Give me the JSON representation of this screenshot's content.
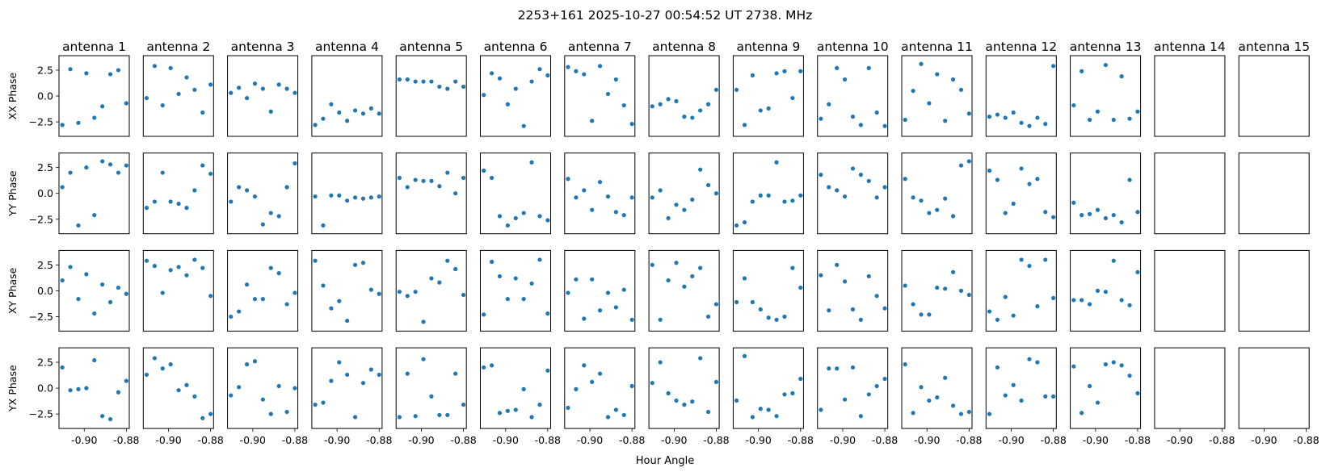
{
  "chart_data": {
    "type": "scatter",
    "title": "2253+161  2025-10-27 00:54:52 UT  2738. MHz",
    "xlabel": "Hour Angle",
    "xlim": [
      -0.912,
      -0.8786
    ],
    "ylim": [
      -3.9,
      3.9
    ],
    "xticks": [
      -0.9,
      -0.88
    ],
    "xtick_labels": [
      "-0.90",
      "-0.88"
    ],
    "yticks": [
      2.5,
      0.0,
      -2.5
    ],
    "ytick_labels": [
      "2.5",
      "0.0",
      "−2.5"
    ],
    "point_color": "#1f77b4",
    "antennas": [
      "antenna 1",
      "antenna 2",
      "antenna 3",
      "antenna 4",
      "antenna 5",
      "antenna 6",
      "antenna 7",
      "antenna 8",
      "antenna 9",
      "antenna 10",
      "antenna 11",
      "antenna 12",
      "antenna 13",
      "antenna 14",
      "antenna 15"
    ],
    "x": [
      -0.9104,
      -0.9066,
      -0.9028,
      -0.899,
      -0.8952,
      -0.8914,
      -0.8876,
      -0.8838,
      -0.88
    ],
    "series": [
      {
        "name": "XX Phase",
        "antennas": [
          [
            -2.8,
            2.6,
            -2.6,
            2.2,
            -2.1,
            -1.0,
            2.1,
            2.5,
            -0.7
          ],
          [
            -0.2,
            2.9,
            -0.9,
            2.7,
            0.2,
            1.8,
            0.6,
            -1.6,
            1.1
          ],
          [
            0.3,
            0.8,
            -0.2,
            1.2,
            0.7,
            -1.5,
            1.1,
            0.7,
            0.3
          ],
          [
            -2.8,
            -2.2,
            -0.8,
            -1.6,
            -2.4,
            -1.4,
            -1.7,
            -1.2,
            -1.7
          ],
          [
            1.6,
            1.6,
            1.4,
            1.4,
            1.4,
            0.9,
            0.7,
            1.4,
            0.9
          ],
          [
            0.1,
            2.2,
            1.7,
            -0.8,
            0.7,
            -2.9,
            1.4,
            2.6,
            2.0
          ],
          [
            2.8,
            2.4,
            2.1,
            -2.4,
            2.9,
            0.2,
            1.6,
            -0.9,
            -2.7
          ],
          [
            -1.0,
            -0.8,
            -0.3,
            -0.5,
            -2.0,
            -2.1,
            -1.4,
            -0.8,
            0.6
          ],
          [
            0.6,
            -2.8,
            2.0,
            -1.4,
            -1.2,
            2.2,
            2.4,
            -0.2,
            2.4
          ],
          [
            -2.2,
            -0.8,
            2.7,
            1.6,
            -2.0,
            -2.8,
            2.7,
            -1.6,
            -2.9
          ],
          [
            -2.3,
            0.5,
            3.1,
            -0.7,
            2.1,
            -2.4,
            1.6,
            0.6,
            -1.7
          ],
          [
            -2.0,
            -1.8,
            -2.1,
            -1.6,
            -2.6,
            -2.9,
            -2.1,
            -2.7,
            2.9
          ],
          [
            -0.9,
            2.4,
            -2.3,
            -1.5,
            3.0,
            -2.3,
            1.9,
            -2.2,
            -1.5
          ],
          [],
          []
        ]
      },
      {
        "name": "YY Phase",
        "antennas": [
          [
            0.6,
            2.0,
            -3.1,
            2.5,
            -2.1,
            3.1,
            2.8,
            2.0,
            2.7
          ],
          [
            -1.4,
            -0.8,
            2.0,
            -0.8,
            -1.0,
            -1.4,
            0.3,
            2.7,
            1.9
          ],
          [
            -0.8,
            0.6,
            0.3,
            -0.3,
            -3.0,
            -1.9,
            -2.2,
            0.6,
            2.9
          ],
          [
            -0.3,
            -3.1,
            -0.2,
            -0.2,
            -0.7,
            -0.4,
            -0.5,
            -0.4,
            -0.3
          ],
          [
            1.5,
            0.6,
            1.3,
            1.2,
            1.2,
            0.7,
            2.0,
            0.0,
            1.5
          ],
          [
            2.2,
            1.5,
            -2.2,
            -3.1,
            -2.4,
            -1.9,
            3.0,
            -2.2,
            -2.6
          ],
          [
            1.4,
            -0.4,
            0.3,
            -1.6,
            1.1,
            -0.3,
            -1.8,
            -2.1,
            -0.4
          ],
          [
            -0.4,
            0.3,
            -2.4,
            -1.1,
            -1.6,
            -0.6,
            2.3,
            0.8,
            0.0
          ],
          [
            -3.1,
            -2.8,
            -0.8,
            -0.2,
            -0.2,
            3.0,
            -0.8,
            -0.7,
            -0.2
          ],
          [
            1.8,
            0.6,
            0.3,
            -0.3,
            2.4,
            1.8,
            1.2,
            -0.4,
            0.6
          ],
          [
            1.4,
            -0.4,
            -0.7,
            -1.9,
            -1.6,
            -0.5,
            -2.2,
            2.7,
            3.1
          ],
          [
            2.2,
            1.3,
            -1.9,
            -1.0,
            2.4,
            0.9,
            1.4,
            -1.8,
            -2.3
          ],
          [
            -0.9,
            -2.1,
            -2.0,
            -1.6,
            -2.4,
            -2.1,
            -2.8,
            1.3,
            -1.8
          ],
          [],
          []
        ]
      },
      {
        "name": "XY Phase",
        "antennas": [
          [
            1.0,
            2.3,
            -0.8,
            1.6,
            -2.2,
            0.6,
            -1.1,
            0.3,
            -0.3
          ],
          [
            2.9,
            2.4,
            -0.2,
            2.0,
            2.3,
            1.5,
            3.0,
            2.2,
            -0.5
          ],
          [
            -2.5,
            -2.0,
            0.6,
            -0.8,
            -0.8,
            2.2,
            1.7,
            -1.3,
            -0.2
          ],
          [
            2.9,
            0.5,
            -1.7,
            -1.0,
            -2.9,
            2.5,
            2.7,
            0.1,
            -0.3
          ],
          [
            -0.1,
            -0.5,
            -0.1,
            -3.0,
            1.2,
            0.8,
            2.9,
            2.1,
            -0.4
          ],
          [
            -2.3,
            2.8,
            1.4,
            -0.8,
            1.2,
            -0.8,
            0.7,
            3.0,
            -2.2
          ],
          [
            -0.2,
            1.1,
            -2.7,
            1.1,
            -1.9,
            -0.2,
            -1.6,
            0.1,
            -2.8
          ],
          [
            2.5,
            -2.8,
            1.0,
            2.7,
            0.4,
            1.4,
            2.2,
            -2.5,
            -1.3
          ],
          [
            -1.1,
            1.2,
            -1.1,
            -1.8,
            -2.6,
            -2.8,
            -2.5,
            2.2,
            0.3
          ],
          [
            1.5,
            -1.9,
            2.5,
            0.9,
            -1.8,
            -2.8,
            1.4,
            -0.5,
            -1.7
          ],
          [
            0.5,
            -1.3,
            -2.3,
            -2.3,
            0.3,
            0.2,
            1.8,
            0.0,
            -0.4
          ],
          [
            -2.0,
            -2.8,
            -0.6,
            -2.4,
            3.0,
            2.4,
            -1.5,
            3.0,
            -0.7
          ],
          [
            -0.9,
            -0.9,
            -1.3,
            0.0,
            -0.1,
            2.9,
            -0.9,
            -1.4,
            1.8
          ],
          [],
          []
        ]
      },
      {
        "name": "YX Phase",
        "antennas": [
          [
            2.0,
            -0.2,
            -0.1,
            0.0,
            2.7,
            -2.7,
            -3.0,
            -0.4,
            0.7
          ],
          [
            1.3,
            2.9,
            1.9,
            2.3,
            -0.2,
            0.3,
            -0.8,
            -2.9,
            -2.5
          ],
          [
            -0.7,
            0.1,
            2.3,
            2.6,
            -1.1,
            -2.5,
            0.2,
            -2.3,
            0.0
          ],
          [
            -1.6,
            -1.4,
            0.7,
            2.5,
            1.3,
            -2.8,
            0.5,
            1.8,
            1.3
          ],
          [
            -2.8,
            1.4,
            -2.7,
            2.8,
            -0.8,
            -2.6,
            -2.6,
            1.4,
            -1.6
          ],
          [
            2.0,
            2.2,
            -2.4,
            -2.2,
            -2.1,
            -0.1,
            -2.8,
            -1.6,
            1.7
          ],
          [
            -1.9,
            -0.1,
            2.2,
            0.6,
            1.4,
            -2.8,
            -2.1,
            -2.6,
            0.2
          ],
          [
            0.5,
            2.5,
            -0.5,
            -1.2,
            -1.6,
            -1.3,
            2.9,
            -2.3,
            0.6
          ],
          [
            -1.2,
            3.1,
            -2.8,
            -2.0,
            -2.1,
            -2.7,
            -0.6,
            -0.5,
            0.9
          ],
          [
            -2.1,
            1.9,
            1.9,
            -1.1,
            2.0,
            -2.7,
            -0.6,
            0.2,
            0.9
          ],
          [
            2.3,
            -2.4,
            0.1,
            -1.2,
            -0.9,
            1.0,
            -1.7,
            -2.5,
            -2.3
          ],
          [
            -2.5,
            2.0,
            -0.7,
            0.3,
            -1.2,
            2.8,
            2.5,
            -0.8,
            -0.8
          ],
          [
            2.1,
            -2.4,
            0.2,
            -1.4,
            2.3,
            2.5,
            2.2,
            1.2,
            -0.5
          ],
          [],
          []
        ]
      }
    ]
  }
}
